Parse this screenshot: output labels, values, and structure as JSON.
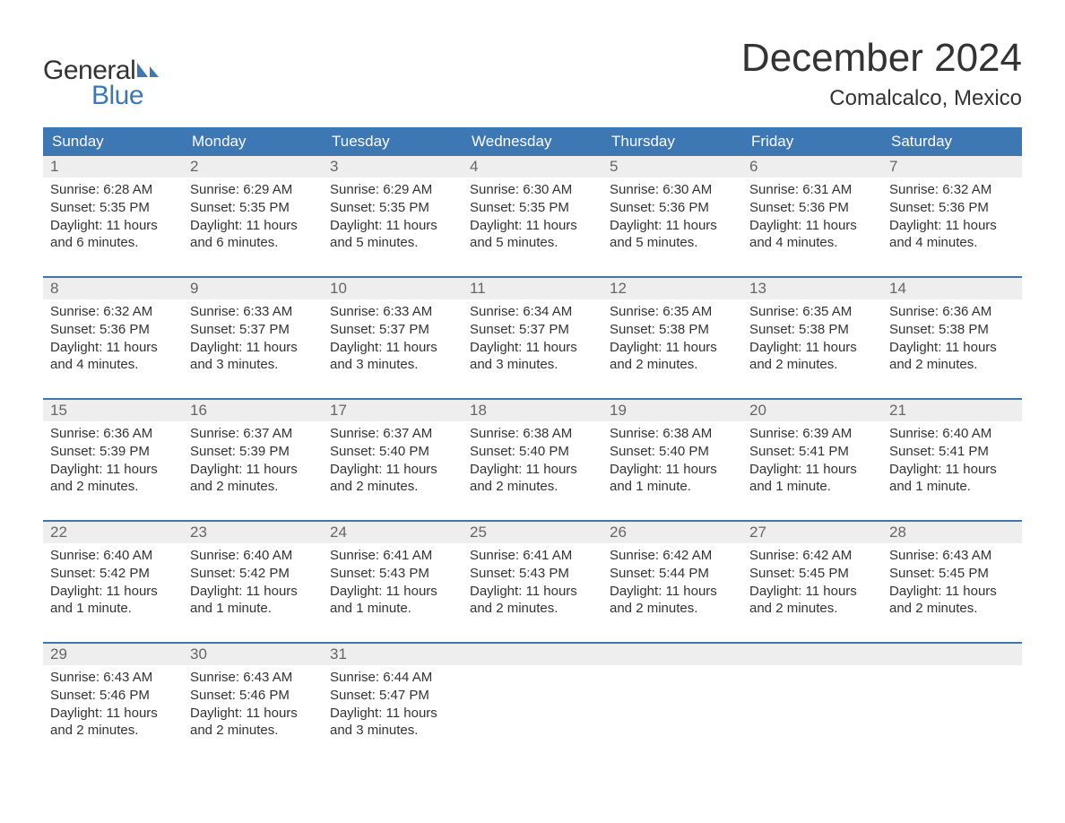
{
  "logo": {
    "text_general": "General",
    "text_blue": "Blue",
    "blue_color": "#3d78b5"
  },
  "header": {
    "title": "December 2024",
    "subtitle": "Comalcalco, Mexico"
  },
  "colors": {
    "header_row_bg": "#3d78b5",
    "daynum_row_bg": "#eeeeee",
    "week_divider": "#3d78b5",
    "text": "#333333",
    "muted": "#666666"
  },
  "day_names": [
    "Sunday",
    "Monday",
    "Tuesday",
    "Wednesday",
    "Thursday",
    "Friday",
    "Saturday"
  ],
  "weeks": [
    [
      {
        "n": "1",
        "sr": "Sunrise: 6:28 AM",
        "ss": "Sunset: 5:35 PM",
        "d1": "Daylight: 11 hours",
        "d2": "and 6 minutes."
      },
      {
        "n": "2",
        "sr": "Sunrise: 6:29 AM",
        "ss": "Sunset: 5:35 PM",
        "d1": "Daylight: 11 hours",
        "d2": "and 6 minutes."
      },
      {
        "n": "3",
        "sr": "Sunrise: 6:29 AM",
        "ss": "Sunset: 5:35 PM",
        "d1": "Daylight: 11 hours",
        "d2": "and 5 minutes."
      },
      {
        "n": "4",
        "sr": "Sunrise: 6:30 AM",
        "ss": "Sunset: 5:35 PM",
        "d1": "Daylight: 11 hours",
        "d2": "and 5 minutes."
      },
      {
        "n": "5",
        "sr": "Sunrise: 6:30 AM",
        "ss": "Sunset: 5:36 PM",
        "d1": "Daylight: 11 hours",
        "d2": "and 5 minutes."
      },
      {
        "n": "6",
        "sr": "Sunrise: 6:31 AM",
        "ss": "Sunset: 5:36 PM",
        "d1": "Daylight: 11 hours",
        "d2": "and 4 minutes."
      },
      {
        "n": "7",
        "sr": "Sunrise: 6:32 AM",
        "ss": "Sunset: 5:36 PM",
        "d1": "Daylight: 11 hours",
        "d2": "and 4 minutes."
      }
    ],
    [
      {
        "n": "8",
        "sr": "Sunrise: 6:32 AM",
        "ss": "Sunset: 5:36 PM",
        "d1": "Daylight: 11 hours",
        "d2": "and 4 minutes."
      },
      {
        "n": "9",
        "sr": "Sunrise: 6:33 AM",
        "ss": "Sunset: 5:37 PM",
        "d1": "Daylight: 11 hours",
        "d2": "and 3 minutes."
      },
      {
        "n": "10",
        "sr": "Sunrise: 6:33 AM",
        "ss": "Sunset: 5:37 PM",
        "d1": "Daylight: 11 hours",
        "d2": "and 3 minutes."
      },
      {
        "n": "11",
        "sr": "Sunrise: 6:34 AM",
        "ss": "Sunset: 5:37 PM",
        "d1": "Daylight: 11 hours",
        "d2": "and 3 minutes."
      },
      {
        "n": "12",
        "sr": "Sunrise: 6:35 AM",
        "ss": "Sunset: 5:38 PM",
        "d1": "Daylight: 11 hours",
        "d2": "and 2 minutes."
      },
      {
        "n": "13",
        "sr": "Sunrise: 6:35 AM",
        "ss": "Sunset: 5:38 PM",
        "d1": "Daylight: 11 hours",
        "d2": "and 2 minutes."
      },
      {
        "n": "14",
        "sr": "Sunrise: 6:36 AM",
        "ss": "Sunset: 5:38 PM",
        "d1": "Daylight: 11 hours",
        "d2": "and 2 minutes."
      }
    ],
    [
      {
        "n": "15",
        "sr": "Sunrise: 6:36 AM",
        "ss": "Sunset: 5:39 PM",
        "d1": "Daylight: 11 hours",
        "d2": "and 2 minutes."
      },
      {
        "n": "16",
        "sr": "Sunrise: 6:37 AM",
        "ss": "Sunset: 5:39 PM",
        "d1": "Daylight: 11 hours",
        "d2": "and 2 minutes."
      },
      {
        "n": "17",
        "sr": "Sunrise: 6:37 AM",
        "ss": "Sunset: 5:40 PM",
        "d1": "Daylight: 11 hours",
        "d2": "and 2 minutes."
      },
      {
        "n": "18",
        "sr": "Sunrise: 6:38 AM",
        "ss": "Sunset: 5:40 PM",
        "d1": "Daylight: 11 hours",
        "d2": "and 2 minutes."
      },
      {
        "n": "19",
        "sr": "Sunrise: 6:38 AM",
        "ss": "Sunset: 5:40 PM",
        "d1": "Daylight: 11 hours",
        "d2": "and 1 minute."
      },
      {
        "n": "20",
        "sr": "Sunrise: 6:39 AM",
        "ss": "Sunset: 5:41 PM",
        "d1": "Daylight: 11 hours",
        "d2": "and 1 minute."
      },
      {
        "n": "21",
        "sr": "Sunrise: 6:40 AM",
        "ss": "Sunset: 5:41 PM",
        "d1": "Daylight: 11 hours",
        "d2": "and 1 minute."
      }
    ],
    [
      {
        "n": "22",
        "sr": "Sunrise: 6:40 AM",
        "ss": "Sunset: 5:42 PM",
        "d1": "Daylight: 11 hours",
        "d2": "and 1 minute."
      },
      {
        "n": "23",
        "sr": "Sunrise: 6:40 AM",
        "ss": "Sunset: 5:42 PM",
        "d1": "Daylight: 11 hours",
        "d2": "and 1 minute."
      },
      {
        "n": "24",
        "sr": "Sunrise: 6:41 AM",
        "ss": "Sunset: 5:43 PM",
        "d1": "Daylight: 11 hours",
        "d2": "and 1 minute."
      },
      {
        "n": "25",
        "sr": "Sunrise: 6:41 AM",
        "ss": "Sunset: 5:43 PM",
        "d1": "Daylight: 11 hours",
        "d2": "and 2 minutes."
      },
      {
        "n": "26",
        "sr": "Sunrise: 6:42 AM",
        "ss": "Sunset: 5:44 PM",
        "d1": "Daylight: 11 hours",
        "d2": "and 2 minutes."
      },
      {
        "n": "27",
        "sr": "Sunrise: 6:42 AM",
        "ss": "Sunset: 5:45 PM",
        "d1": "Daylight: 11 hours",
        "d2": "and 2 minutes."
      },
      {
        "n": "28",
        "sr": "Sunrise: 6:43 AM",
        "ss": "Sunset: 5:45 PM",
        "d1": "Daylight: 11 hours",
        "d2": "and 2 minutes."
      }
    ],
    [
      {
        "n": "29",
        "sr": "Sunrise: 6:43 AM",
        "ss": "Sunset: 5:46 PM",
        "d1": "Daylight: 11 hours",
        "d2": "and 2 minutes."
      },
      {
        "n": "30",
        "sr": "Sunrise: 6:43 AM",
        "ss": "Sunset: 5:46 PM",
        "d1": "Daylight: 11 hours",
        "d2": "and 2 minutes."
      },
      {
        "n": "31",
        "sr": "Sunrise: 6:44 AM",
        "ss": "Sunset: 5:47 PM",
        "d1": "Daylight: 11 hours",
        "d2": "and 3 minutes."
      },
      null,
      null,
      null,
      null
    ]
  ]
}
